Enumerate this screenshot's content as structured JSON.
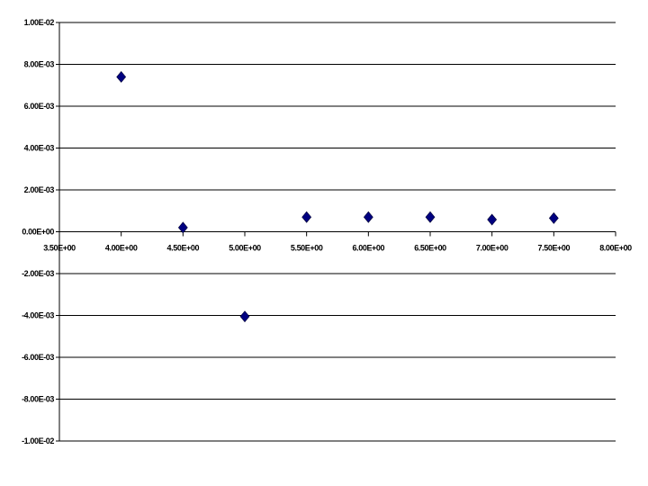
{
  "chart_data": {
    "type": "scatter",
    "title": "",
    "xlabel": "",
    "ylabel": "",
    "xlim": [
      3.5,
      8.0
    ],
    "ylim": [
      -0.01,
      0.01
    ],
    "grid": "horizontal",
    "legend": "none",
    "marker": "diamond",
    "marker_color": "#000080",
    "x_ticks": [
      3.5,
      4.0,
      4.5,
      5.0,
      5.5,
      6.0,
      6.5,
      7.0,
      7.5,
      8.0
    ],
    "x_tick_labels": [
      "3.50E+00",
      "4.00E+00",
      "4.50E+00",
      "5.00E+00",
      "5.50E+00",
      "6.00E+00",
      "6.50E+00",
      "7.00E+00",
      "7.50E+00",
      "8.00E+00"
    ],
    "y_ticks": [
      0.01,
      0.008,
      0.006,
      0.004,
      0.002,
      0,
      -0.002,
      -0.004,
      -0.006,
      -0.008,
      -0.01
    ],
    "y_tick_labels": [
      "1.00E-02",
      "8.00E-03",
      "6.00E-03",
      "4.00E-03",
      "2.00E-03",
      "0.00E+00",
      "-2.00E-03",
      "-4.00E-03",
      "-6.00E-03",
      "-8.00E-03",
      "-1.00E-02"
    ],
    "series": [
      {
        "x": [
          4.0,
          4.5,
          5.0,
          5.5,
          6.0,
          6.5,
          7.0,
          7.5
        ],
        "y": [
          0.0074,
          0.0002,
          -0.00405,
          0.0007,
          0.0007,
          0.0007,
          0.00058,
          0.00065
        ]
      }
    ]
  }
}
